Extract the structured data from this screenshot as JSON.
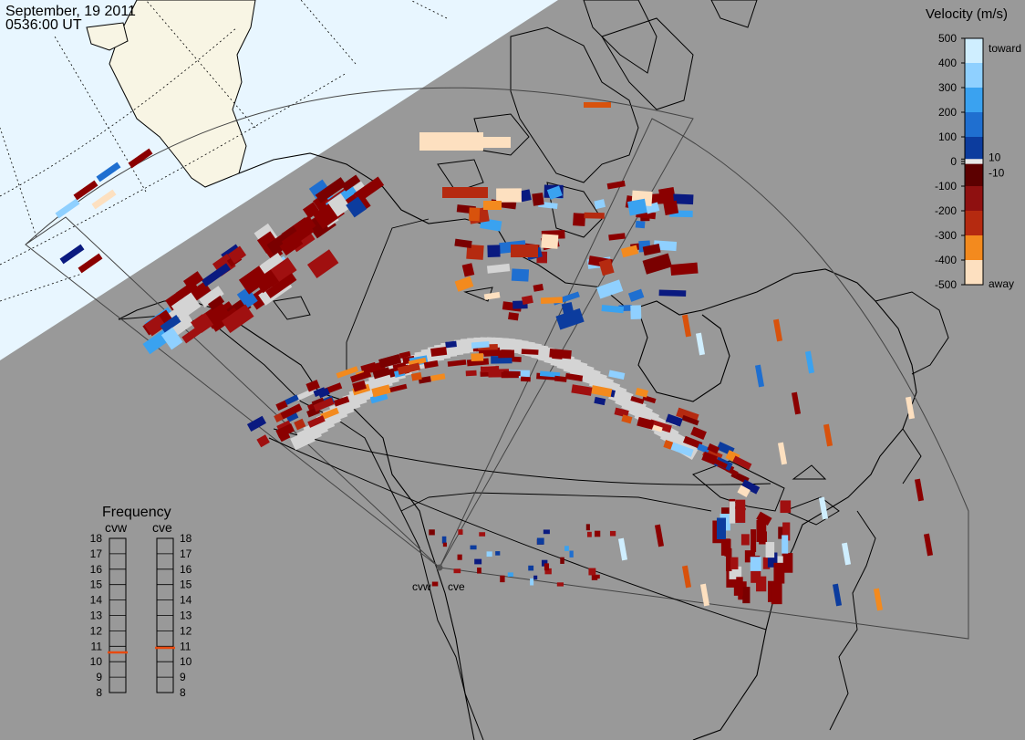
{
  "header": {
    "date": "September, 19 2011",
    "time": "0536:00 UT"
  },
  "velocity_scale": {
    "title": "Velocity (m/s)",
    "ticks": [
      "500",
      "400",
      "300",
      "200",
      "100",
      "10",
      "0",
      "-10",
      "-100",
      "-200",
      "-300",
      "-400",
      "-500"
    ],
    "toward_label": "toward",
    "away_label": "away",
    "colors": [
      "#cfeeff",
      "#8fd0ff",
      "#3aa2f0",
      "#1f6fd0",
      "#0c3c9e",
      "#061a6c",
      "#e8e8e8",
      "#5c0000",
      "#8f1010",
      "#b52a10",
      "#d8520c",
      "#f38a1e",
      "#fde0c0"
    ]
  },
  "frequency": {
    "title": "Frequency",
    "radars": [
      {
        "code": "cvw",
        "value": 10.6
      },
      {
        "code": "cve",
        "value": 10.9
      }
    ],
    "ticks": [
      "18",
      "17",
      "16",
      "15",
      "14",
      "13",
      "12",
      "11",
      "10",
      "9",
      "8"
    ],
    "marker_color": "#e84a10"
  },
  "sites": {
    "west_label": "cvw",
    "east_label": "cve"
  },
  "colors": {
    "ocean": "#999999",
    "daylight": "#e8f6ff",
    "daylight_land": "#f8f5e4",
    "coast": "#000000",
    "fov_outline": "#444444",
    "ground_scatter": "#d4d4d4"
  }
}
